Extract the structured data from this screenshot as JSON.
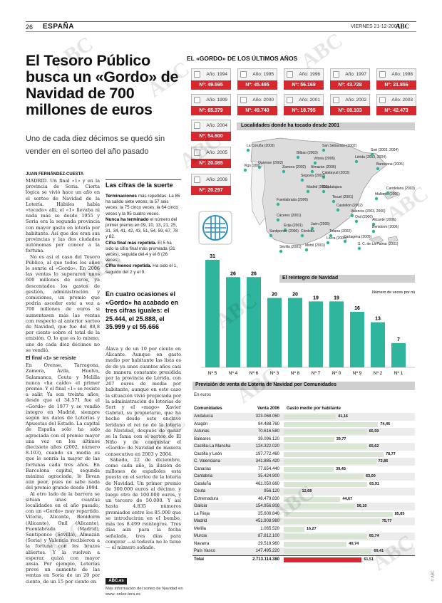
{
  "header": {
    "page_number": "26",
    "section": "ESPAÑA",
    "date": "VIERNES 21-12-2007",
    "newspaper": "ABC"
  },
  "article": {
    "headline": "El Tesoro Público busca un «Gordo» de Navidad de 700 millones de euros",
    "subhead": "Uno de cada diez décimos se quedó sin vender en el sorteo del año pasado",
    "byline": "JUAN FERNÁNDEZ-CUESTA",
    "col1_paragraphs": [
      "MADRID. Un final «1» y en la provincia de Soria. Cierta lógica se vivió hace un año en el sorteo de Navidad de la Lotería. Hábiles había «tocado» allí, el «1» llevaba ni nada más se desde 1955 y Soria era la segunda provincia con mayor gasto en lotería por habitante. Así que dos eran sus provincias y las dos ciudades autónomas por concer a la fortuna.",
      "No es así el caso del Tesoro Público, al que todos los años le sonríe el «Gordo». En 2006 las ventas lo superaron unos 600 millones de euros, ya descontados los gastos de gestión, administración y comisiones, un premio que podría asceder este a vez a 700 millones de euros si aumentasen más las ventas con respecto al anterior sorteo de Navidad, que fue del 88,8 por ciento sobre el total de la emisión. O, lo que es lo mismo, uno de cada diez décimos no se vendió."
    ],
    "col1_subtitle": "El final «1» se resiste",
    "col1_paragraphs_b": [
      "En Orense, Tarragona, Zamora, Ávila, Huelva, Salamanca, Ceuta y Melilla nunca «ha caído» el primer premio. Y el final «1» se resiste a salir. Ya son treinta años, desde que el 34.571 fue el «Gordo» de 1977 y se vendió íntegro en Madrid, siempre según los datos de Loterías y Apuestas del Estado. La capital de España sólo ha sido agraciada con el premio mayor una vez en los últimos diecisiete años (2002, número 8.103), cuando su media es que le sonría la mayor de las fortunas cada tres años. En Barcelona capital, segunda máxima agraciada, lo llevan aún peor, pues no sabe nada del premio grande desde 1994.",
      "Al otro lado de la barrera se sitúan unas cuantas localidades en el año pasado, con un «Gordo» muy repartido. Vitoria, Alicante, Benidorm (Alicante), Onil (Alicante), Fuenlabrada (Madrid), Santiponce (Sevilla), Almazán (Soria) y Valencia recibieron a la fortuna con los brazos abiertos. Y la vuelven a esperar, quizá con mayor ansia. Por ejemplo, Loterías prevé un aumento de las ventas en Soria de un 20 por ciento, de un 15 por ciento en"
    ],
    "col3_paragraphs": [
      "Álava y de un 10 por ciento en Alicante. Aunque en gasto medio por habitante las lista es de de ya unos cuantos años casi de manera constante presidida por la provincia de Lérida, con 267 euros de media por habitante, aunque en este caso la situación vivió propiciada por la administración de loterías de Sort y el «mago» Xavier Gabriel, su propietario, que ha hecho desde este enclave leridano el rei no de la lotería de Navidad, después de ganar se la fama con el sorteo de El Niño y de conquistar el «Gordo» de Navidad de manera consecutiva en 2003 y 2004.",
      "Sábado, 22 de diciembre, como cada año, la ilusión de millones de españoles está puesta en el sorteo de la lotería de Navidad. Un primer premio de 300.000 euros al décimo, y luego otro de 100.000 euros, y un tercero de 50.000. Y así hasta 4.835 números premiados entre los 85.000 que se introducirán en el bombo, más los 8.499 reintegros. Tres días aún para la fecha señalada, tres días para comprar —si todavía no lo tiene— el número soñado."
    ],
    "pullquote": "En cuatro ocasiones el «Gordo» ha acabado en tres cifras iguales: el 25.444, el 25.888, el 35.999 y el 55.666",
    "abc_badge": "ABC.es",
    "abc_more": "Más información del sorteo de Navidad en www. onlee.tera.es"
  },
  "cifras": {
    "title": "Las cifras de la suerte",
    "items": [
      {
        "label": "Terminaciones",
        "text": " más repetidas. La 85 ha salido siete veces; la 57 seis veces; la 75 cinco veces; la 64 cinco veces y la 95 cuatro veces."
      },
      {
        "label": "Nunca ha terminado",
        "text": " el número del primer premio en 09, 10, 13, 21, 25, 31, 34, 41, 42, 43, 51, 54, 59, 67, 78 y 82."
      },
      {
        "label": "Cifra final más repetida.",
        "text": " El 5 ha sido la cifra final más premiada (31 veces), seguida del 4 y el 6 (26 veces)."
      },
      {
        "label": "Cifra menos repetida.",
        "text": " Ha sido el 1, seguido del 2 y el 9."
      }
    ]
  },
  "gordo": {
    "title": "EL «GORDO» DE LOS ÚLTIMOS AÑOS",
    "cards": [
      {
        "year": "Año: 1994",
        "number": "Nº: 49.595"
      },
      {
        "year": "Año: 1995",
        "number": "Nº: 45.495"
      },
      {
        "year": "Año: 1996",
        "number": "Nº: 56.169"
      },
      {
        "year": "Año: 1997",
        "number": "Nº: 43.728"
      },
      {
        "year": "Año: 1998",
        "number": "Nº: 21.856"
      },
      {
        "year": "Año: 1999",
        "number": "Nº: 65.379"
      },
      {
        "year": "Año: 2000",
        "number": "Nº: 49.740"
      },
      {
        "year": "Año: 2001",
        "number": "Nº: 18.795"
      },
      {
        "year": "Año: 2002",
        "number": "Nº: 08.103"
      },
      {
        "year": "Año: 2003",
        "number": "Nº: 42.473"
      },
      {
        "year": "Año: 2004",
        "number": "Nº: 54.600"
      },
      {
        "year": "Año: 2005",
        "number": "Nº: 20.085"
      },
      {
        "year": "Año: 2006",
        "number": "Nº: 20.297"
      }
    ]
  },
  "map": {
    "title": "Localidades donde ha tocado desde 2001",
    "labels": [
      "La Coruña (2003)",
      "Vigo (2001)",
      "Bilbao (2003)",
      "San Sebastián (2002)",
      "Vitoria (2006)",
      "Lérida (2003, 2004)",
      "Sort (2003, 2004)",
      "Barcelona (2005)",
      "Ourense (2002)",
      "Zamora (2002)",
      "Almazán (2006)",
      "Calatayud (2003)",
      "Segovia (2002)",
      "Madrid (2002)",
      "Guadalajara",
      "Fuenlabrada (2006)",
      "Teruel (2001)",
      "Castellón (2002)",
      "Mallorca (2005)",
      "Valencia (2003, 2006)",
      "Onil (2006)",
      "Alicante (2006)",
      "Benidorm (2006)",
      "Cáceres (2001)",
      "Écija (2001)",
      "Jaén (2005)",
      "Santiponce (2006)",
      "Córdoba",
      "Totana (2002)",
      "Lorca (2005)",
      "Cartagena (2005)",
      "Motril (2001)",
      "Sevilla (2001)",
      "S. C. de La Palma (2001)",
      "Candelaria (2003)"
    ]
  },
  "reintegro": {
    "title": "El reintegro de Navidad",
    "note": "Número de veces por número"
  },
  "chart_data": [
    {
      "type": "bar",
      "title": "El reintegro de Navidad",
      "xlabel": "",
      "ylabel": "Número de veces por número",
      "categories": [
        "Nº 5",
        "Nº 4",
        "Nº 6",
        "Nº 3",
        "Nº 8",
        "Nº 7",
        "Nº 0",
        "Nº 9",
        "Nº 2",
        "Nº 1"
      ],
      "values": [
        31,
        26,
        26,
        20,
        20,
        19,
        19,
        16,
        13,
        7
      ],
      "ylim": [
        0,
        32
      ],
      "colors": {
        "bar": "#2fb59d"
      }
    },
    {
      "type": "bar",
      "title": "Previsión de venta de Lotería de Navidad por Comunidades",
      "xlabel": "",
      "ylabel": "Gasto medio por habitante",
      "unit": "En euros",
      "columns": [
        "Comunidades",
        "Venta 2006",
        "Gasto medio por habitante"
      ],
      "rows": [
        {
          "name": "Andalucía",
          "venta": "323.068.060",
          "gasto": "41,16",
          "value": 41.16
        },
        {
          "name": "Aragón",
          "venta": "94.488.760",
          "gasto": "74,46",
          "value": 74.46
        },
        {
          "name": "Asturias",
          "venta": "70.616.580",
          "gasto": "65,59",
          "value": 65.59
        },
        {
          "name": "Baleares",
          "venta": "39.096.120",
          "gasto": "39,77",
          "value": 39.77
        },
        {
          "name": "Castilla-La Mancha",
          "venta": "124.322.020",
          "gasto": "65,62",
          "value": 65.62
        },
        {
          "name": "Castilla y León",
          "venta": "197.772.460",
          "gasto": "78,77",
          "value": 78.77
        },
        {
          "name": "C. Valenciana",
          "venta": "341.885.420",
          "gasto": "72,86",
          "value": 72.86
        },
        {
          "name": "Canarias",
          "venta": "77.654.440",
          "gasto": "39,45",
          "value": 39.45
        },
        {
          "name": "Cantabria",
          "venta": "35.424.900",
          "gasto": "63,00",
          "value": 63.0
        },
        {
          "name": "Cataluña",
          "venta": "461.050.660",
          "gasto": "65,91",
          "value": 65.91
        },
        {
          "name": "Ceuta",
          "venta": "956.120",
          "gasto": "12,68",
          "value": 12.68
        },
        {
          "name": "Extremadura",
          "venta": "48.479.830",
          "gasto": "44,67",
          "value": 44.67
        },
        {
          "name": "Galicia",
          "venta": "154.956.800",
          "gasto": "56,10",
          "value": 56.1
        },
        {
          "name": "La Rioja",
          "venta": "25.606.840",
          "gasto": "85,85",
          "value": 85.85
        },
        {
          "name": "Madrid",
          "venta": "451.908.980",
          "gasto": "75,77",
          "value": 75.77
        },
        {
          "name": "Melilla",
          "venta": "1.065.520",
          "gasto": "16,27",
          "value": 16.27
        },
        {
          "name": "Murcia",
          "venta": "87.812.100",
          "gasto": "65,74",
          "value": 65.74
        },
        {
          "name": "Navarra",
          "venta": "29.518.960",
          "gasto": "49,74",
          "value": 49.74
        },
        {
          "name": "País Vasco",
          "venta": "147.495.220",
          "gasto": "69,41",
          "value": 69.41
        },
        {
          "name": "Total",
          "venta": "2.713.114.380",
          "gasto": "61,51",
          "value": 61.51
        }
      ],
      "xlim": [
        0,
        90
      ],
      "colors": {
        "bar": "#d9e6d4",
        "total": "#d9272e"
      }
    }
  ],
  "prevision": {
    "title": "Previsión de venta de Lotería de Navidad por Comunidades",
    "unit": "En euros",
    "col_names": [
      "Comunidades",
      "Venta 2006",
      "Gasto medio por habitante"
    ]
  },
  "watermark": "ABC",
  "copyright": "© ABC"
}
